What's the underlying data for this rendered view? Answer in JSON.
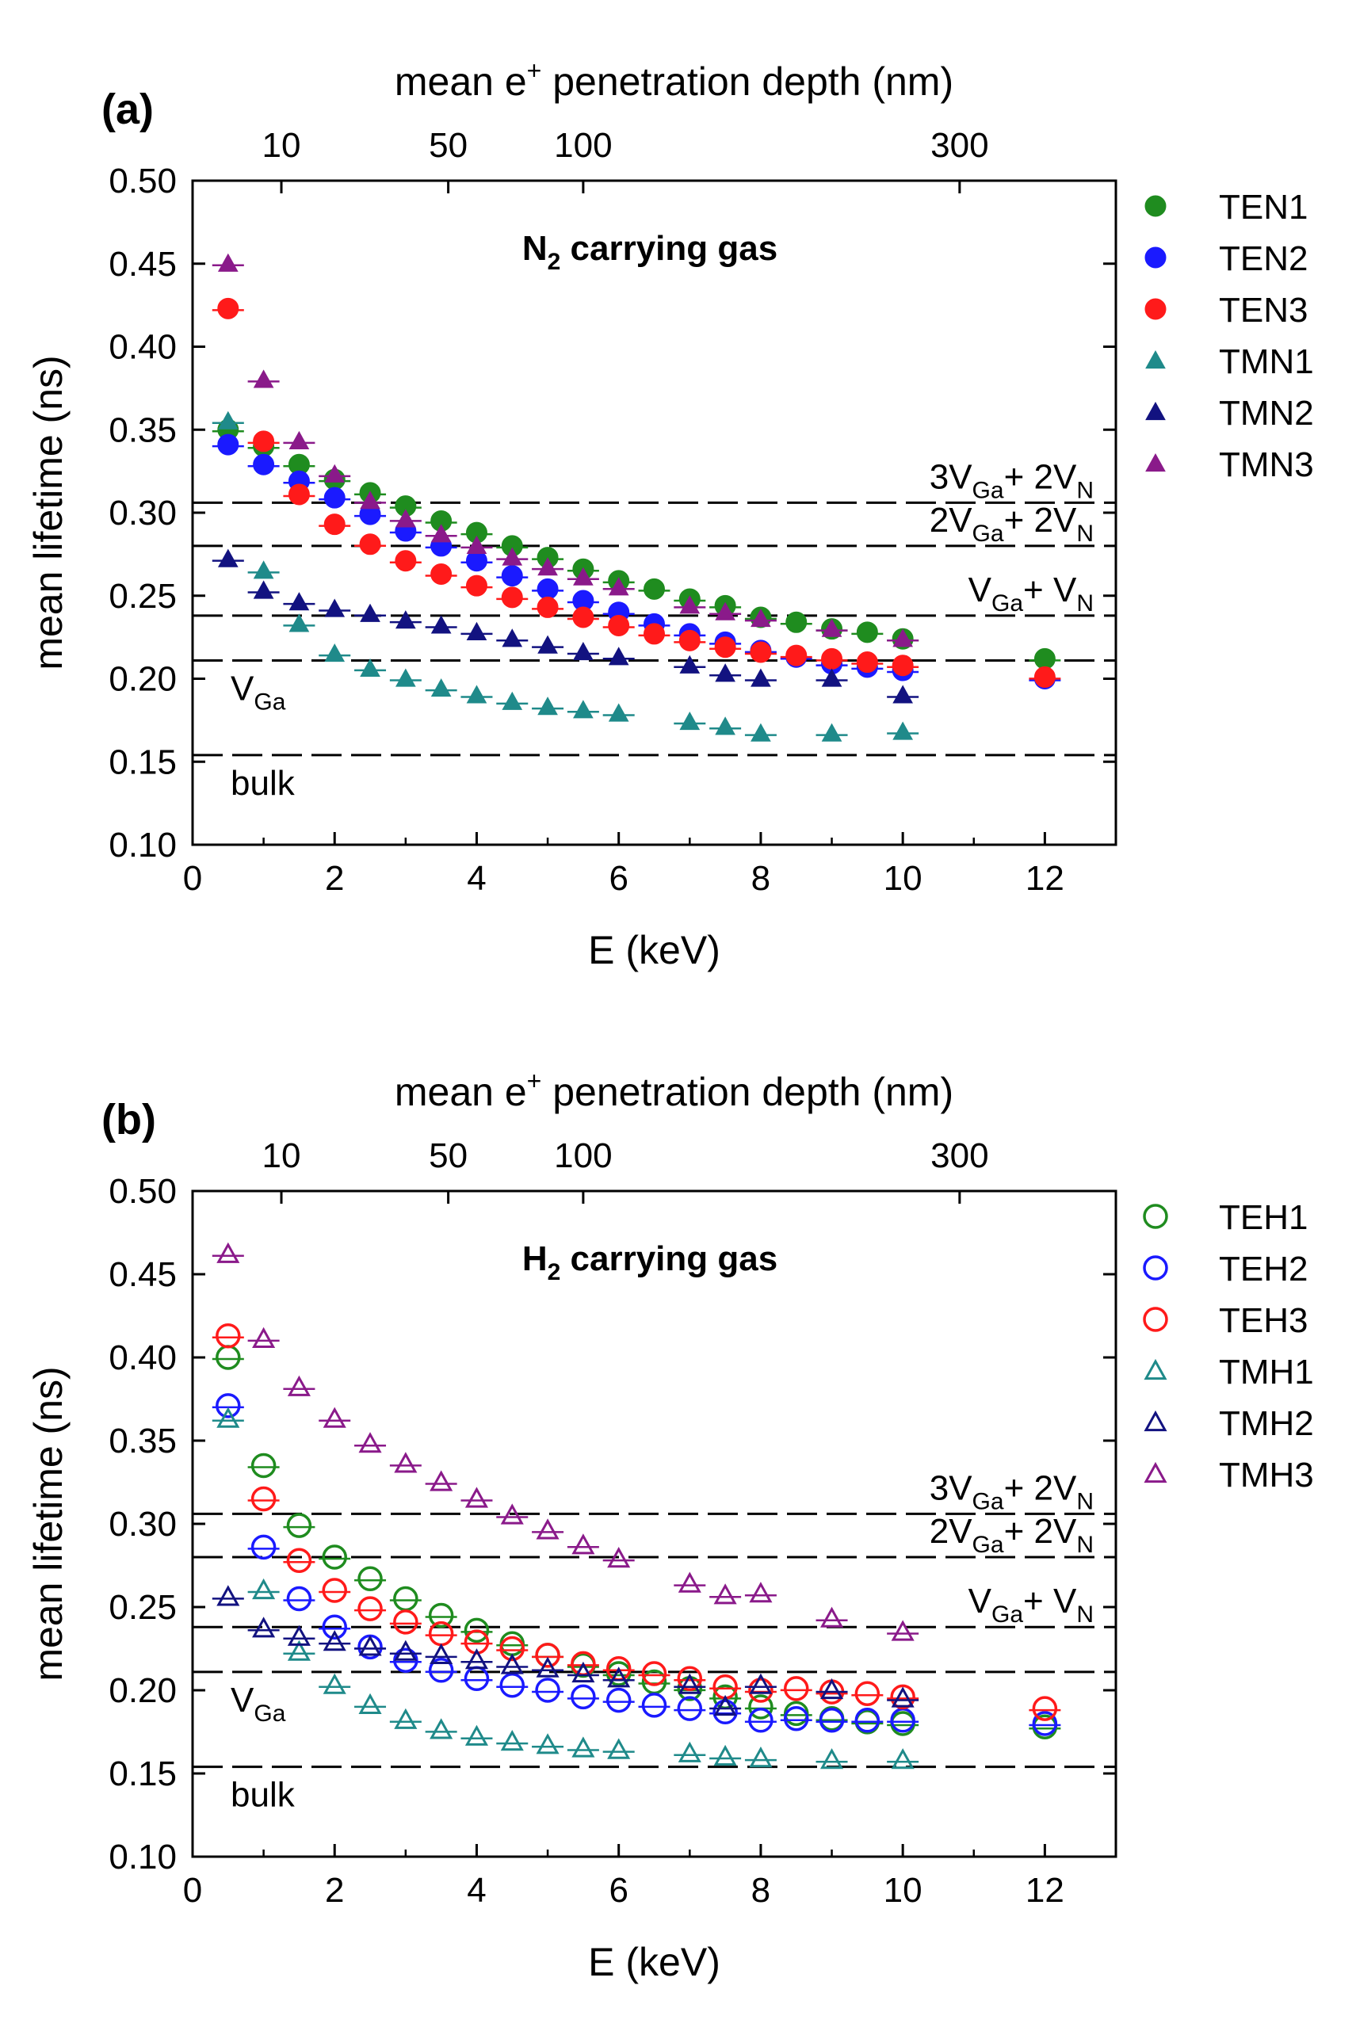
{
  "figure": {
    "colors": {
      "TEN1": "#1f8c1f",
      "TEN2": "#1a1aff",
      "TEN3": "#ff1a1a",
      "TMN1": "#1f8a8a",
      "TMN2": "#121280",
      "TMN3": "#8a1a8a",
      "TEH1": "#1f8c1f",
      "TEH2": "#1a1aff",
      "TEH3": "#ff1a1a",
      "TMH1": "#1f8a8a",
      "TMH2": "#121280",
      "TMH3": "#8a1a8a",
      "axis": "#000000",
      "dash": "#000000"
    }
  },
  "chart_data": [
    {
      "type": "scatter",
      "panel_label": "(a)",
      "title": "N2 carrying gas",
      "title_main": "N",
      "title_sub": "2",
      "title_rest": " carrying gas",
      "xlabel": "E (keV)",
      "ylabel": "mean lifetime (ns)",
      "top_xlabel_pre": "mean e",
      "top_xlabel_sup": "+",
      "top_xlabel_post": " penetration depth (nm)",
      "xlim": [
        0,
        13
      ],
      "ylim": [
        0.1,
        0.5
      ],
      "x_ticks": [
        0,
        2,
        4,
        6,
        8,
        10,
        12
      ],
      "x_tick_labels": [
        "0",
        "2",
        "4",
        "6",
        "8",
        "10",
        "12"
      ],
      "y_ticks": [
        0.1,
        0.15,
        0.2,
        0.25,
        0.3,
        0.35,
        0.4,
        0.45,
        0.5
      ],
      "y_tick_labels": [
        "0.10",
        "0.15",
        "0.20",
        "0.25",
        "0.30",
        "0.35",
        "0.40",
        "0.45",
        "0.50"
      ],
      "top_ticks": [
        {
          "label": "10",
          "energy": 1.25
        },
        {
          "label": "50",
          "energy": 3.6
        },
        {
          "label": "100",
          "energy": 5.5
        },
        {
          "label": "300",
          "energy": 10.8
        }
      ],
      "reference_lines": [
        {
          "y": 0.306,
          "label_main": "3V",
          "label_sub": "Ga",
          "label_mid": "+ 2V",
          "label_sub2": "N",
          "label_pos": "right"
        },
        {
          "y": 0.28,
          "label_main": "2V",
          "label_sub": "Ga",
          "label_mid": "+ 2V",
          "label_sub2": "N",
          "label_pos": "right"
        },
        {
          "y": 0.238,
          "label_main": "V",
          "label_sub": "Ga",
          "label_mid": "+ V",
          "label_sub2": "N",
          "label_pos": "right"
        },
        {
          "y": 0.211,
          "label_main": "V",
          "label_sub": "Ga",
          "label_mid": "",
          "label_sub2": "",
          "label_pos": "left"
        },
        {
          "y": 0.154,
          "label_main": "bulk",
          "label_sub": "",
          "label_mid": "",
          "label_sub2": "",
          "label_pos": "left"
        }
      ],
      "series": [
        {
          "name": "TEN1",
          "marker": "circle",
          "filled": true,
          "x": [
            0.5,
            1.0,
            1.5,
            2.0,
            2.5,
            3.0,
            3.5,
            4.0,
            4.5,
            5.0,
            5.5,
            6.0,
            6.5,
            7.0,
            7.5,
            8.0,
            8.5,
            9.0,
            9.5,
            10.0,
            12.0
          ],
          "y": [
            0.35,
            0.34,
            0.329,
            0.32,
            0.312,
            0.304,
            0.295,
            0.288,
            0.28,
            0.273,
            0.266,
            0.259,
            0.254,
            0.248,
            0.244,
            0.237,
            0.234,
            0.23,
            0.228,
            0.224,
            0.212
          ]
        },
        {
          "name": "TEN2",
          "marker": "circle",
          "filled": true,
          "x": [
            0.5,
            1.0,
            1.5,
            2.0,
            2.5,
            3.0,
            3.5,
            4.0,
            4.5,
            5.0,
            5.5,
            6.0,
            6.5,
            7.0,
            7.5,
            8.0,
            8.5,
            9.0,
            9.5,
            10.0,
            12.0
          ],
          "y": [
            0.341,
            0.329,
            0.319,
            0.309,
            0.299,
            0.289,
            0.28,
            0.271,
            0.262,
            0.254,
            0.247,
            0.24,
            0.233,
            0.227,
            0.222,
            0.217,
            0.213,
            0.209,
            0.207,
            0.205,
            0.2
          ]
        },
        {
          "name": "TEN3",
          "marker": "circle",
          "filled": true,
          "x": [
            0.5,
            1.0,
            1.5,
            2.0,
            2.5,
            3.0,
            3.5,
            4.0,
            4.5,
            5.0,
            5.5,
            6.0,
            6.5,
            7.0,
            7.5,
            8.0,
            8.5,
            9.0,
            9.5,
            10.0,
            12.0
          ],
          "y": [
            0.423,
            0.343,
            0.311,
            0.293,
            0.281,
            0.271,
            0.263,
            0.256,
            0.249,
            0.243,
            0.237,
            0.232,
            0.227,
            0.223,
            0.219,
            0.216,
            0.214,
            0.212,
            0.21,
            0.208,
            0.201
          ]
        },
        {
          "name": "TMN1",
          "marker": "triangle",
          "filled": true,
          "x": [
            0.5,
            1.0,
            1.5,
            2.0,
            2.5,
            3.0,
            3.5,
            4.0,
            4.5,
            5.0,
            5.5,
            6.0,
            7.0,
            7.5,
            8.0,
            9.0,
            10.0
          ],
          "y": [
            0.355,
            0.265,
            0.233,
            0.215,
            0.206,
            0.2,
            0.194,
            0.19,
            0.186,
            0.183,
            0.181,
            0.179,
            0.174,
            0.171,
            0.167,
            0.167,
            0.168
          ]
        },
        {
          "name": "TMN2",
          "marker": "triangle",
          "filled": true,
          "x": [
            0.5,
            1.0,
            1.5,
            2.0,
            2.5,
            3.0,
            3.5,
            4.0,
            4.5,
            5.0,
            5.5,
            6.0,
            7.0,
            7.5,
            8.0,
            9.0,
            10.0
          ],
          "y": [
            0.272,
            0.253,
            0.246,
            0.242,
            0.239,
            0.235,
            0.232,
            0.228,
            0.224,
            0.22,
            0.216,
            0.213,
            0.208,
            0.203,
            0.2,
            0.2,
            0.19
          ]
        },
        {
          "name": "TMN3",
          "marker": "triangle",
          "filled": true,
          "x": [
            0.5,
            1.0,
            1.5,
            2.0,
            2.5,
            3.0,
            3.5,
            4.0,
            4.5,
            5.0,
            5.5,
            6.0,
            7.0,
            7.5,
            8.0,
            9.0,
            10.0
          ],
          "y": [
            0.45,
            0.38,
            0.343,
            0.323,
            0.307,
            0.296,
            0.287,
            0.28,
            0.273,
            0.267,
            0.261,
            0.255,
            0.244,
            0.24,
            0.236,
            0.23,
            0.224
          ]
        }
      ]
    },
    {
      "type": "scatter",
      "panel_label": "(b)",
      "title": "H2 carrying gas",
      "title_main": "H",
      "title_sub": "2",
      "title_rest": " carrying gas",
      "xlabel": "E (keV)",
      "ylabel": "mean lifetime (ns)",
      "top_xlabel_pre": "mean e",
      "top_xlabel_sup": "+",
      "top_xlabel_post": " penetration depth (nm)",
      "xlim": [
        0,
        13
      ],
      "ylim": [
        0.1,
        0.5
      ],
      "x_ticks": [
        0,
        2,
        4,
        6,
        8,
        10,
        12
      ],
      "x_tick_labels": [
        "0",
        "2",
        "4",
        "6",
        "8",
        "10",
        "12"
      ],
      "y_ticks": [
        0.1,
        0.15,
        0.2,
        0.25,
        0.3,
        0.35,
        0.4,
        0.45,
        0.5
      ],
      "y_tick_labels": [
        "0.10",
        "0.15",
        "0.20",
        "0.25",
        "0.30",
        "0.35",
        "0.40",
        "0.45",
        "0.50"
      ],
      "top_ticks": [
        {
          "label": "10",
          "energy": 1.25
        },
        {
          "label": "50",
          "energy": 3.6
        },
        {
          "label": "100",
          "energy": 5.5
        },
        {
          "label": "300",
          "energy": 10.8
        }
      ],
      "reference_lines": [
        {
          "y": 0.306,
          "label_main": "3V",
          "label_sub": "Ga",
          "label_mid": "+ 2V",
          "label_sub2": "N",
          "label_pos": "right"
        },
        {
          "y": 0.28,
          "label_main": "2V",
          "label_sub": "Ga",
          "label_mid": "+ 2V",
          "label_sub2": "N",
          "label_pos": "right"
        },
        {
          "y": 0.238,
          "label_main": "V",
          "label_sub": "Ga",
          "label_mid": "+ V",
          "label_sub2": "N",
          "label_pos": "right"
        },
        {
          "y": 0.211,
          "label_main": "V",
          "label_sub": "Ga",
          "label_mid": "",
          "label_sub2": "",
          "label_pos": "left"
        },
        {
          "y": 0.154,
          "label_main": "bulk",
          "label_sub": "",
          "label_mid": "",
          "label_sub2": "",
          "label_pos": "left"
        }
      ],
      "series": [
        {
          "name": "TEH1",
          "marker": "circle",
          "filled": false,
          "x": [
            0.5,
            1.0,
            1.5,
            2.0,
            2.5,
            3.0,
            3.5,
            4.0,
            4.5,
            5.0,
            5.5,
            6.0,
            6.5,
            7.0,
            7.5,
            8.0,
            8.5,
            9.0,
            9.5,
            10.0,
            12.0
          ],
          "y": [
            0.4,
            0.335,
            0.299,
            0.28,
            0.267,
            0.255,
            0.245,
            0.236,
            0.228,
            0.221,
            0.215,
            0.21,
            0.205,
            0.201,
            0.196,
            0.19,
            0.186,
            0.183,
            0.181,
            0.18,
            0.178
          ]
        },
        {
          "name": "TEH2",
          "marker": "circle",
          "filled": false,
          "x": [
            0.5,
            1.0,
            1.5,
            2.0,
            2.5,
            3.0,
            3.5,
            4.0,
            4.5,
            5.0,
            5.5,
            6.0,
            6.5,
            7.0,
            7.5,
            8.0,
            8.5,
            9.0,
            9.5,
            10.0,
            12.0
          ],
          "y": [
            0.371,
            0.286,
            0.255,
            0.238,
            0.226,
            0.218,
            0.212,
            0.207,
            0.203,
            0.2,
            0.196,
            0.194,
            0.191,
            0.189,
            0.187,
            0.182,
            0.183,
            0.182,
            0.182,
            0.182,
            0.18
          ]
        },
        {
          "name": "TEH3",
          "marker": "circle",
          "filled": false,
          "x": [
            0.5,
            1.0,
            1.5,
            2.0,
            2.5,
            3.0,
            3.5,
            4.0,
            4.5,
            5.0,
            5.5,
            6.0,
            6.5,
            7.0,
            7.5,
            8.0,
            8.5,
            9.0,
            9.5,
            10.0,
            12.0
          ],
          "y": [
            0.413,
            0.315,
            0.278,
            0.26,
            0.249,
            0.241,
            0.234,
            0.229,
            0.225,
            0.221,
            0.216,
            0.213,
            0.21,
            0.207,
            0.202,
            0.2,
            0.201,
            0.199,
            0.198,
            0.196,
            0.189
          ]
        },
        {
          "name": "TMH1",
          "marker": "triangle",
          "filled": false,
          "x": [
            0.5,
            1.0,
            1.5,
            2.0,
            2.5,
            3.0,
            3.5,
            4.0,
            4.5,
            5.0,
            5.5,
            6.0,
            7.0,
            7.5,
            8.0,
            9.0,
            10.0
          ],
          "y": [
            0.363,
            0.26,
            0.223,
            0.203,
            0.191,
            0.182,
            0.176,
            0.172,
            0.169,
            0.167,
            0.165,
            0.164,
            0.162,
            0.16,
            0.159,
            0.158,
            0.158
          ]
        },
        {
          "name": "TMH2",
          "marker": "triangle",
          "filled": false,
          "x": [
            0.5,
            1.0,
            1.5,
            2.0,
            2.5,
            3.0,
            3.5,
            4.0,
            4.5,
            5.0,
            5.5,
            6.0,
            7.0,
            7.5,
            8.0,
            9.0,
            10.0
          ],
          "y": [
            0.256,
            0.237,
            0.232,
            0.229,
            0.226,
            0.223,
            0.221,
            0.218,
            0.215,
            0.213,
            0.21,
            0.207,
            0.203,
            0.19,
            0.203,
            0.2,
            0.195
          ]
        },
        {
          "name": "TMH3",
          "marker": "triangle",
          "filled": false,
          "x": [
            0.5,
            1.0,
            1.5,
            2.0,
            2.5,
            3.0,
            3.5,
            4.0,
            4.5,
            5.0,
            5.5,
            6.0,
            7.0,
            7.5,
            8.0,
            9.0,
            10.0
          ],
          "y": [
            0.462,
            0.411,
            0.382,
            0.363,
            0.348,
            0.336,
            0.325,
            0.315,
            0.305,
            0.296,
            0.287,
            0.279,
            0.264,
            0.257,
            0.258,
            0.243,
            0.235
          ]
        }
      ]
    }
  ]
}
